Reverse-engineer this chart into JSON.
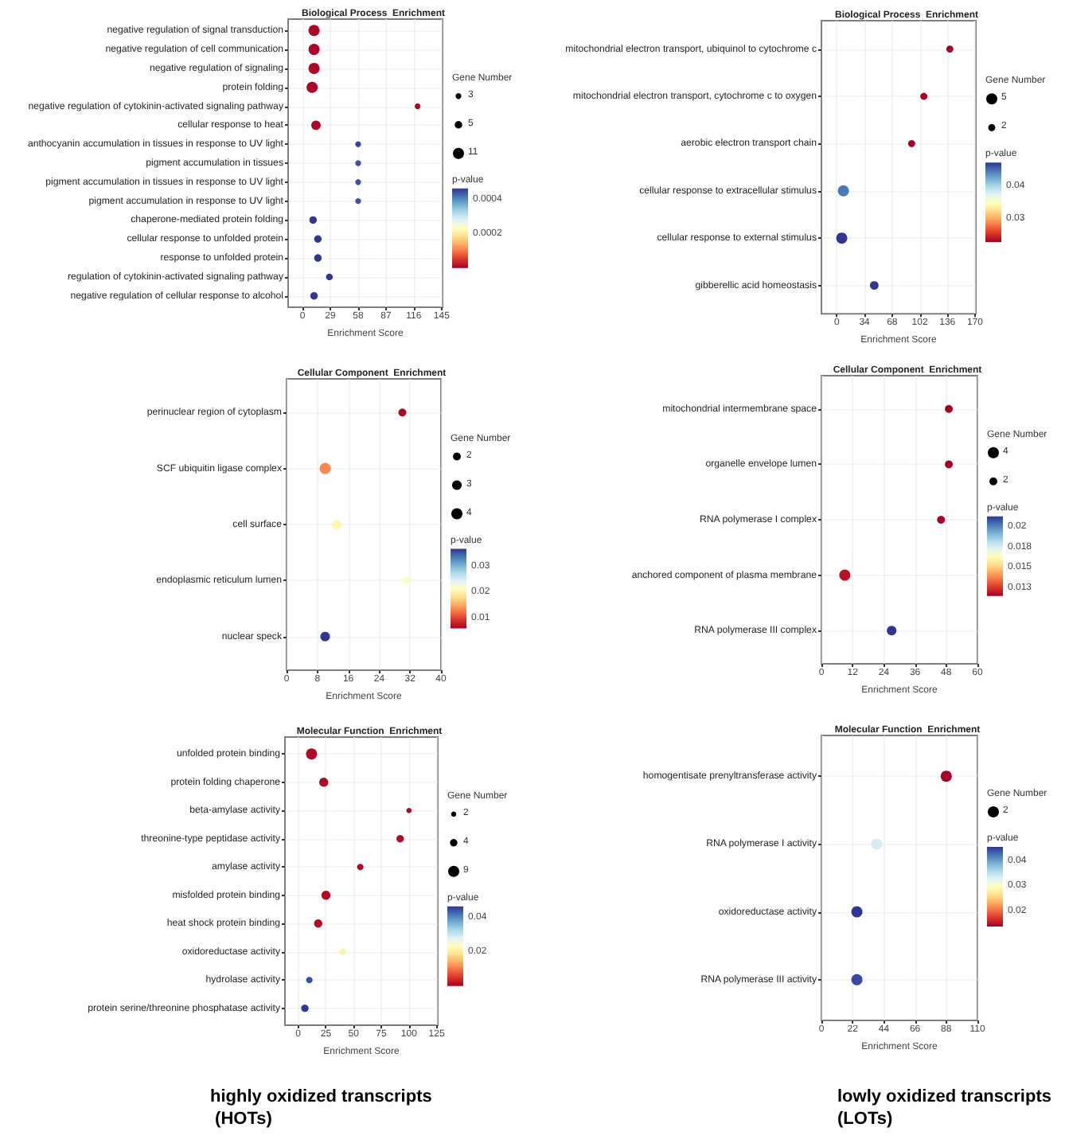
{
  "chart_data": [
    {
      "type": "bubble",
      "orientation": "horizontal",
      "title": "Biological Process  Enrichment",
      "xlabel": "Enrichment Score",
      "legend_title": "Gene Number",
      "clabel": "p-value",
      "marker": "circle",
      "grid": true,
      "categories": [
        "negative regulation of signal transduction",
        "negative regulation of cell communication",
        "negative regulation of signaling",
        "protein folding",
        "negative regulation of cytokinin-activated signaling pathway",
        "cellular response to heat",
        "anthocyanin accumulation in tissues in response to UV light",
        "pigment accumulation in tissues",
        "pigment accumulation in tissues in response to UV light",
        "pigment accumulation in response to UV light",
        "chaperone-mediated protein folding",
        "cellular response to unfolded protein",
        "response to unfolded protein",
        "regulation of cytokinin-activated signaling pathway",
        "negative regulation of cellular response to alcohol"
      ],
      "values": [
        12,
        12,
        12,
        10,
        120,
        14,
        58,
        58,
        58,
        58,
        11,
        16,
        16,
        28,
        12
      ],
      "sizes": [
        11,
        11,
        11,
        11,
        3,
        8,
        3,
        3,
        3,
        3,
        5,
        5,
        5,
        4,
        5
      ],
      "cvalues": [
        1e-05,
        1e-05,
        1e-05,
        1e-05,
        1e-05,
        1e-05,
        0.00046,
        0.00045,
        0.00045,
        0.00045,
        0.00047,
        0.00047,
        0.00047,
        0.00047,
        0.00047
      ],
      "size_legend": [
        3,
        5,
        11
      ],
      "clim": [
        3e-06,
        0.00047
      ],
      "cticks": [
        0.0002,
        0.0004
      ],
      "xlim": [
        -15,
        146
      ],
      "xticks": [
        0,
        29,
        58,
        87,
        116,
        145
      ]
    },
    {
      "type": "bubble",
      "orientation": "horizontal",
      "title": "Biological Process  Enrichment",
      "xlabel": "Enrichment Score",
      "legend_title": "Gene Number",
      "clabel": "p-value",
      "marker": "circle",
      "grid": true,
      "categories": [
        "mitochondrial electron transport, ubiquinol to cytochrome c",
        "mitochondrial electron transport, cytochrome c to oxygen",
        "aerobic electron transport chain",
        "cellular response to extracellular stimulus",
        "cellular response to external stimulus",
        "gibberellic acid homeostasis"
      ],
      "values": [
        139,
        107,
        92,
        8,
        6,
        46
      ],
      "sizes": [
        2,
        2,
        2,
        5,
        5,
        3
      ],
      "cvalues": [
        0.023,
        0.023,
        0.023,
        0.045,
        0.0477,
        0.0477
      ],
      "size_legend": [
        5,
        2
      ],
      "clim": [
        0.023,
        0.0477
      ],
      "cticks": [
        0.04,
        0.03
      ],
      "xlim": [
        -19,
        171
      ],
      "xticks": [
        0,
        34,
        68,
        102,
        136,
        170
      ]
    },
    {
      "type": "bubble",
      "orientation": "horizontal",
      "title": "Cellular Component  Enrichment",
      "xlabel": "Enrichment Score",
      "legend_title": "Gene Number",
      "clabel": "p-value",
      "marker": "circle",
      "grid": true,
      "categories": [
        "perinuclear region of cytoplasm",
        "SCF ubiquitin ligase complex",
        "cell surface",
        "endoplasmic reticulum lumen",
        "nuclear speck"
      ],
      "values": [
        30,
        10,
        13,
        31,
        10
      ],
      "sizes": [
        2,
        4,
        3,
        2,
        3
      ],
      "cvalues": [
        0.007,
        0.014,
        0.021,
        0.022,
        0.037
      ],
      "size_legend": [
        2,
        3,
        4
      ],
      "clim": [
        0.0066,
        0.037
      ],
      "cticks": [
        0.03,
        0.02,
        0.01
      ],
      "xlim": [
        0,
        40
      ],
      "xticks": [
        0,
        8,
        16,
        24,
        32,
        40
      ]
    },
    {
      "type": "bubble",
      "orientation": "horizontal",
      "title": "Cellular Component  Enrichment",
      "xlabel": "Enrichment Score",
      "legend_title": "Gene Number",
      "clabel": "p-value",
      "marker": "circle",
      "grid": true,
      "categories": [
        "mitochondrial intermembrane space",
        "organelle envelope lumen",
        "RNA polymerase I complex",
        "anchored component of plasma membrane",
        "RNA polymerase III complex"
      ],
      "values": [
        49,
        49,
        46,
        9,
        27
      ],
      "sizes": [
        2,
        2,
        2,
        4,
        3
      ],
      "cvalues": [
        0.0116,
        0.0116,
        0.0116,
        0.012,
        0.0214
      ],
      "size_legend": [
        4,
        2
      ],
      "clim": [
        0.0116,
        0.0214
      ],
      "cticks": [
        {
          "value": 0.02,
          "label": "0.02"
        },
        {
          "value": 0.0175,
          "label": "0.018"
        },
        {
          "value": 0.015,
          "label": "0.015"
        },
        {
          "value": 0.0125,
          "label": "0.013"
        }
      ],
      "xlim": [
        0,
        60
      ],
      "xticks": [
        0,
        12,
        24,
        36,
        48,
        60
      ]
    },
    {
      "type": "bubble",
      "orientation": "horizontal",
      "title": "Molecular Function  Enrichment",
      "xlabel": "Enrichment Score",
      "legend_title": "Gene Number",
      "clabel": "p-value",
      "marker": "circle",
      "grid": true,
      "categories": [
        "unfolded protein binding",
        "protein folding chaperone",
        "beta-amylase activity",
        "threonine-type peptidase activity",
        "amylase activity",
        "misfolded protein binding",
        "heat shock protein binding",
        "oxidoreductase activity",
        "hydrolase activity",
        "protein serine/threonine phosphatase activity"
      ],
      "values": [
        12,
        23,
        100,
        92,
        56,
        25,
        18,
        40,
        10,
        6
      ],
      "sizes": [
        9,
        6,
        2,
        4,
        3,
        6,
        5,
        3,
        3,
        4
      ],
      "cvalues": [
        0.002,
        0.002,
        0.002,
        0.002,
        0.002,
        0.002,
        0.002,
        0.022,
        0.045,
        0.047
      ],
      "size_legend": [
        2,
        4,
        9
      ],
      "clim": [
        0.001,
        0.047
      ],
      "cticks": [
        0.04,
        0.02
      ],
      "xlim": [
        -12,
        126
      ],
      "xticks": [
        0,
        25,
        50,
        75,
        100,
        125
      ],
      "annotations": [
        "highly oxidized transcripts (HOTs)"
      ]
    },
    {
      "type": "bubble",
      "orientation": "horizontal",
      "title": "Molecular Function  Enrichment",
      "xlabel": "Enrichment Score",
      "legend_title": "Gene Number",
      "clabel": "p-value",
      "marker": "circle",
      "grid": true,
      "categories": [
        "homogentisate prenyltransferase activity",
        "RNA polymerase I activity",
        "oxidoreductase activity",
        "RNA polymerase III activity"
      ],
      "values": [
        88,
        39,
        25,
        25
      ],
      "sizes": [
        2,
        2,
        2,
        2
      ],
      "cvalues": [
        0.0143,
        0.034,
        0.046,
        0.045
      ],
      "size_legend": [
        2
      ],
      "clim": [
        0.0143,
        0.046
      ],
      "cticks": [
        0.04,
        0.03,
        0.02
      ],
      "xlim": [
        0,
        110
      ],
      "xticks": [
        0,
        22,
        44,
        66,
        88,
        110
      ],
      "annotations": [
        "lowly oxidized transcripts (LOTs)"
      ]
    }
  ]
}
